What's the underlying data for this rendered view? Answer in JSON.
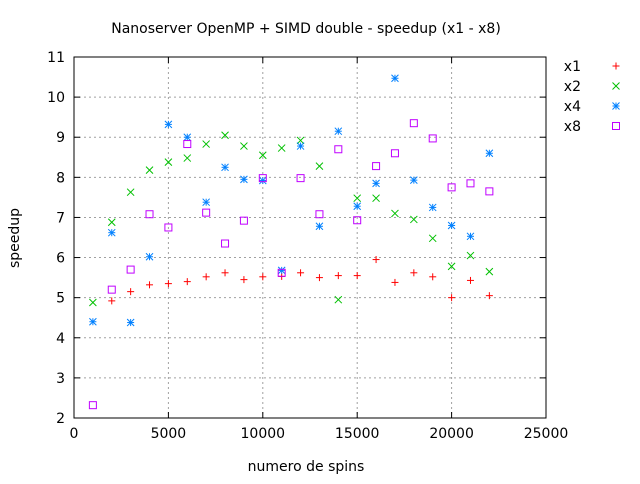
{
  "chart_data": {
    "type": "scatter",
    "title": "Nanoserver OpenMP + SIMD double - speedup (x1 - x8)",
    "xlabel": "numero de spins",
    "ylabel": "speedup",
    "xlim": [
      0,
      25000
    ],
    "ylim": [
      2,
      11
    ],
    "xticks": [
      0,
      5000,
      10000,
      15000,
      20000,
      25000
    ],
    "yticks": [
      2,
      3,
      4,
      5,
      6,
      7,
      8,
      9,
      10,
      11
    ],
    "grid": true,
    "legend_position": "top-right, outside plot",
    "series": [
      {
        "name": "x1",
        "marker": "plus",
        "color": "#ff0000",
        "x": [
          2000,
          3000,
          4000,
          5000,
          6000,
          7000,
          8000,
          9000,
          10000,
          11000,
          12000,
          13000,
          14000,
          15000,
          16000,
          17000,
          18000,
          19000,
          20000,
          21000,
          22000
        ],
        "y": [
          4.92,
          5.15,
          5.32,
          5.35,
          5.4,
          5.52,
          5.62,
          5.45,
          5.52,
          5.53,
          5.62,
          5.5,
          5.55,
          5.55,
          5.95,
          5.38,
          5.62,
          5.52,
          5.0,
          5.43,
          5.05
        ]
      },
      {
        "name": "x2",
        "marker": "cross",
        "color": "#00c000",
        "x": [
          1000,
          2000,
          3000,
          4000,
          5000,
          6000,
          7000,
          8000,
          9000,
          10000,
          11000,
          12000,
          13000,
          14000,
          15000,
          16000,
          17000,
          18000,
          19000,
          20000,
          21000,
          22000
        ],
        "y": [
          4.88,
          6.88,
          7.63,
          8.18,
          8.38,
          8.48,
          8.83,
          9.05,
          8.78,
          8.55,
          8.73,
          8.92,
          8.28,
          4.95,
          7.48,
          7.48,
          7.1,
          6.95,
          6.48,
          5.78,
          6.05,
          5.65
        ]
      },
      {
        "name": "x4",
        "marker": "star",
        "color": "#0080ff",
        "x": [
          1000,
          2000,
          3000,
          4000,
          5000,
          6000,
          7000,
          8000,
          9000,
          10000,
          11000,
          12000,
          13000,
          14000,
          15000,
          16000,
          17000,
          18000,
          19000,
          20000,
          21000,
          22000
        ],
        "y": [
          4.4,
          6.62,
          4.38,
          6.02,
          9.32,
          9.0,
          7.38,
          8.25,
          7.95,
          7.92,
          5.68,
          8.78,
          6.78,
          9.15,
          7.28,
          7.85,
          10.47,
          7.93,
          7.25,
          6.8,
          6.53,
          8.6
        ]
      },
      {
        "name": "x8",
        "marker": "square",
        "color": "#c000ff",
        "x": [
          1000,
          2000,
          3000,
          4000,
          5000,
          6000,
          7000,
          8000,
          9000,
          10000,
          11000,
          12000,
          13000,
          14000,
          15000,
          16000,
          17000,
          18000,
          19000,
          20000,
          21000,
          22000
        ],
        "y": [
          2.32,
          5.2,
          5.7,
          7.08,
          6.75,
          8.83,
          7.12,
          6.35,
          6.92,
          7.98,
          5.62,
          7.98,
          7.08,
          8.7,
          6.93,
          8.28,
          8.6,
          9.35,
          8.97,
          7.75,
          7.85,
          7.65
        ]
      }
    ]
  }
}
